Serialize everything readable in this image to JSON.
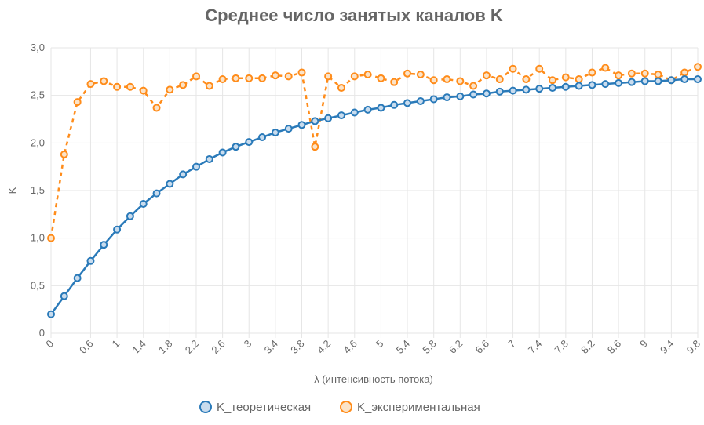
{
  "chart_data": {
    "type": "line",
    "title": "Среднее число занятых каналов K",
    "xlabel": "λ (интенсивность потока)",
    "ylabel": "K",
    "ylim": [
      0,
      3
    ],
    "y_ticks": [
      "0",
      "0,5",
      "1,0",
      "1,5",
      "2,0",
      "2,5",
      "3,0"
    ],
    "x_tick_labels": [
      "0",
      "0.6",
      "1",
      "1.4",
      "1.8",
      "2.2",
      "2.6",
      "3",
      "3.4",
      "3.8",
      "4.2",
      "4.6",
      "5",
      "5.4",
      "5.8",
      "6.2",
      "6.6",
      "7",
      "7.4",
      "7.8",
      "8.2",
      "8.6",
      "9",
      "9.4",
      "9.8"
    ],
    "x": [
      0,
      0.2,
      0.4,
      0.6,
      0.8,
      1.0,
      1.2,
      1.4,
      1.6,
      1.8,
      2.0,
      2.2,
      2.4,
      2.6,
      2.8,
      3.0,
      3.2,
      3.4,
      3.6,
      3.8,
      4.0,
      4.2,
      4.4,
      4.6,
      4.8,
      5.0,
      5.2,
      5.4,
      5.6,
      5.8,
      6.0,
      6.2,
      6.4,
      6.6,
      6.8,
      7.0,
      7.2,
      7.4,
      7.6,
      7.8,
      8.0,
      8.2,
      8.4,
      8.6,
      8.8,
      9.0,
      9.2,
      9.4,
      9.6,
      9.8
    ],
    "grid": true,
    "legend_position": "bottom",
    "series": [
      {
        "name": "K_теоретическая",
        "color": "#2a7ab9",
        "style": "solid",
        "values": [
          0.2,
          0.39,
          0.58,
          0.76,
          0.93,
          1.09,
          1.23,
          1.36,
          1.47,
          1.57,
          1.67,
          1.75,
          1.83,
          1.9,
          1.96,
          2.01,
          2.06,
          2.11,
          2.15,
          2.19,
          2.23,
          2.26,
          2.29,
          2.32,
          2.35,
          2.37,
          2.4,
          2.42,
          2.44,
          2.46,
          2.48,
          2.49,
          2.51,
          2.52,
          2.54,
          2.55,
          2.56,
          2.57,
          2.58,
          2.59,
          2.6,
          2.61,
          2.62,
          2.63,
          2.64,
          2.65,
          2.65,
          2.66,
          2.67,
          2.67
        ]
      },
      {
        "name": "K_экспериментальная",
        "color": "#ff8c1a",
        "style": "dashed",
        "values": [
          1.0,
          1.88,
          2.43,
          2.62,
          2.65,
          2.59,
          2.59,
          2.55,
          2.37,
          2.56,
          2.61,
          2.7,
          2.6,
          2.67,
          2.68,
          2.68,
          2.68,
          2.71,
          2.7,
          2.74,
          1.96,
          2.7,
          2.58,
          2.7,
          2.72,
          2.68,
          2.64,
          2.73,
          2.72,
          2.66,
          2.67,
          2.65,
          2.6,
          2.71,
          2.67,
          2.78,
          2.67,
          2.78,
          2.66,
          2.69,
          2.67,
          2.74,
          2.79,
          2.71,
          2.73,
          2.73,
          2.72,
          2.66,
          2.74,
          2.8
        ]
      }
    ]
  }
}
